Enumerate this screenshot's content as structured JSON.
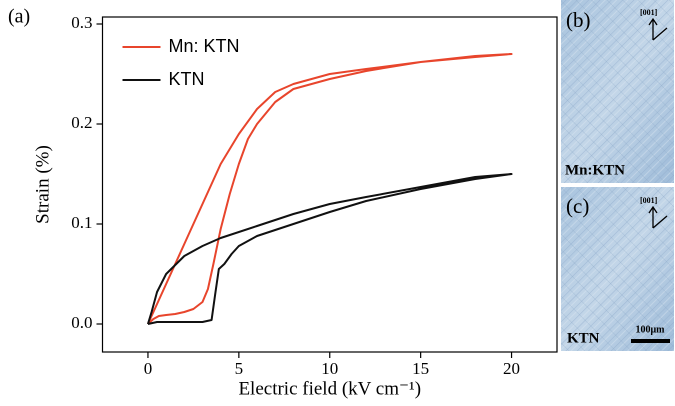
{
  "chart_data": {
    "type": "line",
    "panel_label": "(a)",
    "xlabel": "Electric field (kV cm⁻¹)",
    "ylabel": "Strain (%)",
    "xlim": [
      -2.5,
      22.5
    ],
    "xticks": [
      0,
      5,
      10,
      15,
      20
    ],
    "ylim": [
      -0.028,
      0.307
    ],
    "yticks": [
      {
        "value": 0,
        "label": "0.0"
      },
      0.1,
      0.2,
      0.3
    ],
    "legend": "upper left",
    "series": [
      {
        "name": "Mn: KTN",
        "color": "#e8452c",
        "x": [
          0,
          0.3,
          0.6,
          1,
          1.5,
          2,
          2.5,
          3,
          3.3,
          3.6,
          4,
          4.5,
          5,
          5.5,
          6,
          7,
          8,
          10,
          12,
          15,
          18,
          20,
          18,
          15,
          12,
          10,
          8,
          7,
          6,
          5,
          4,
          3,
          2,
          1.5,
          1,
          0.5,
          0
        ],
        "values": [
          0,
          0.005,
          0.008,
          0.009,
          0.01,
          0.012,
          0.015,
          0.022,
          0.035,
          0.06,
          0.095,
          0.13,
          0.16,
          0.185,
          0.2,
          0.222,
          0.235,
          0.245,
          0.253,
          0.262,
          0.267,
          0.27,
          0.268,
          0.262,
          0.255,
          0.25,
          0.24,
          0.232,
          0.215,
          0.19,
          0.16,
          0.12,
          0.08,
          0.06,
          0.04,
          0.02,
          0
        ]
      },
      {
        "name": "KTN",
        "color": "#111111",
        "x": [
          0,
          0.5,
          1,
          2,
          3,
          3.5,
          3.7,
          3.9,
          4.2,
          4.6,
          5,
          6,
          8,
          10,
          12,
          15,
          18,
          20,
          18,
          15,
          12,
          10,
          8,
          6,
          4,
          3,
          2,
          1,
          0.5,
          0.2,
          0
        ],
        "values": [
          0,
          0.002,
          0.002,
          0.002,
          0.002,
          0.004,
          0.03,
          0.055,
          0.06,
          0.07,
          0.078,
          0.088,
          0.1,
          0.112,
          0.123,
          0.135,
          0.145,
          0.15,
          0.147,
          0.137,
          0.127,
          0.12,
          0.11,
          0.098,
          0.086,
          0.078,
          0.068,
          0.05,
          0.032,
          0.012,
          0
        ]
      }
    ]
  },
  "micrographs": [
    {
      "label": "(b)",
      "direction": "[001]",
      "sample": "Mn:KTN"
    },
    {
      "label": "(c)",
      "direction": "[001]",
      "sample": "KTN",
      "scale_bar": "100μm"
    }
  ]
}
